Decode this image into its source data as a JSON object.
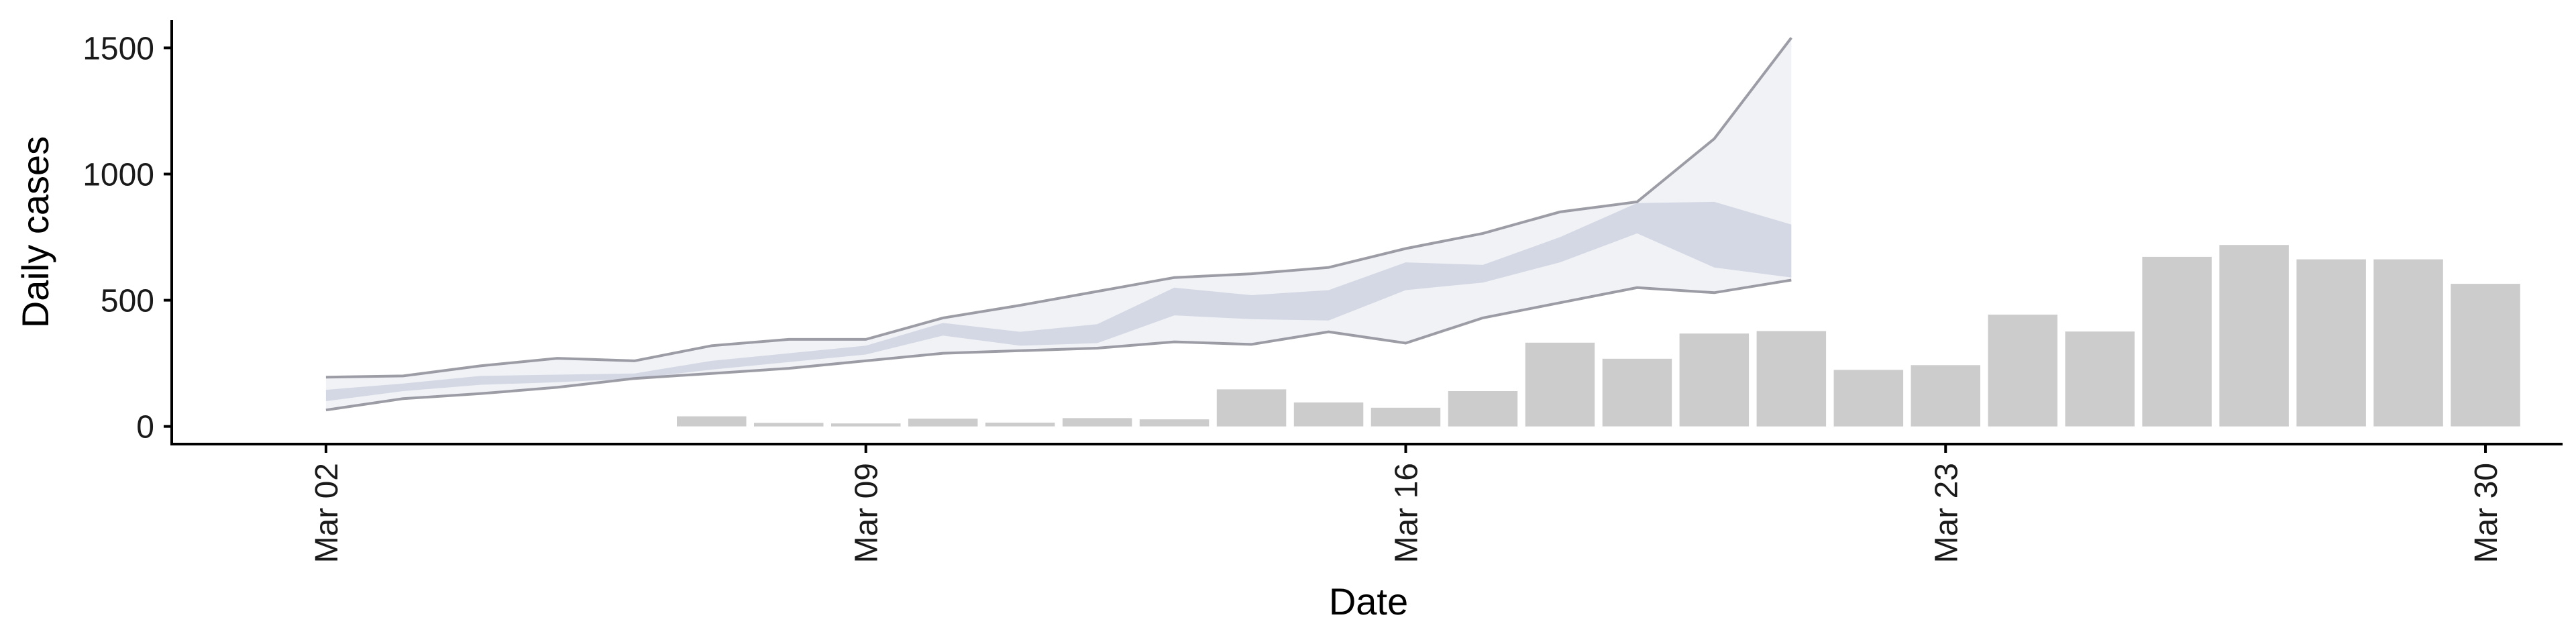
{
  "chart_data": {
    "type": "bar",
    "xlabel": "Date",
    "ylabel": "Daily cases",
    "x_ticks": [
      "Mar 02",
      "Mar 09",
      "Mar 16",
      "Mar 23",
      "Mar 30"
    ],
    "x_tick_dates": [
      "2020-03-02",
      "2020-03-09",
      "2020-03-16",
      "2020-03-23",
      "2020-03-30"
    ],
    "x_range": [
      "2020-02-29",
      "2020-03-31"
    ],
    "y_ticks": [
      0,
      500,
      1000,
      1500
    ],
    "ylim": [
      -70,
      1610
    ],
    "grid": false,
    "legend": "none",
    "colors": {
      "bars": "#cccccc",
      "outer_band_fill": "#e6e8ef",
      "inner_band_fill": "#bcc2d6",
      "band_edge": "#8c8c96"
    },
    "bars": {
      "dates": [
        "2020-03-07",
        "2020-03-08",
        "2020-03-09",
        "2020-03-10",
        "2020-03-11",
        "2020-03-12",
        "2020-03-13",
        "2020-03-14",
        "2020-03-15",
        "2020-03-16",
        "2020-03-17",
        "2020-03-18",
        "2020-03-19",
        "2020-03-20",
        "2020-03-21",
        "2020-03-22",
        "2020-03-23",
        "2020-03-24",
        "2020-03-25",
        "2020-03-26",
        "2020-03-27",
        "2020-03-28",
        "2020-03-29",
        "2020-03-30"
      ],
      "values": [
        40,
        14,
        12,
        31,
        15,
        33,
        28,
        147,
        95,
        74,
        140,
        332,
        268,
        368,
        378,
        224,
        243,
        443,
        376,
        672,
        719,
        662,
        662,
        565
      ]
    },
    "forecast": {
      "dates": [
        "2020-03-02",
        "2020-03-03",
        "2020-03-04",
        "2020-03-05",
        "2020-03-06",
        "2020-03-07",
        "2020-03-08",
        "2020-03-09",
        "2020-03-10",
        "2020-03-11",
        "2020-03-12",
        "2020-03-13",
        "2020-03-14",
        "2020-03-15",
        "2020-03-16",
        "2020-03-17",
        "2020-03-18",
        "2020-03-19",
        "2020-03-20",
        "2020-03-21"
      ],
      "outer_upper": [
        195,
        200,
        240,
        270,
        260,
        320,
        345,
        345,
        430,
        480,
        535,
        590,
        605,
        630,
        705,
        765,
        850,
        890,
        1140,
        1540
      ],
      "outer_lower": [
        65,
        110,
        130,
        155,
        190,
        210,
        230,
        260,
        290,
        300,
        310,
        335,
        325,
        375,
        330,
        430,
        490,
        550,
        530,
        580
      ],
      "inner_upper": [
        145,
        170,
        200,
        205,
        210,
        260,
        290,
        320,
        410,
        375,
        405,
        550,
        520,
        540,
        650,
        640,
        750,
        885,
        890,
        800
      ],
      "inner_lower": [
        100,
        140,
        165,
        175,
        190,
        225,
        255,
        285,
        360,
        320,
        330,
        440,
        425,
        420,
        540,
        570,
        650,
        765,
        630,
        590
      ]
    }
  }
}
